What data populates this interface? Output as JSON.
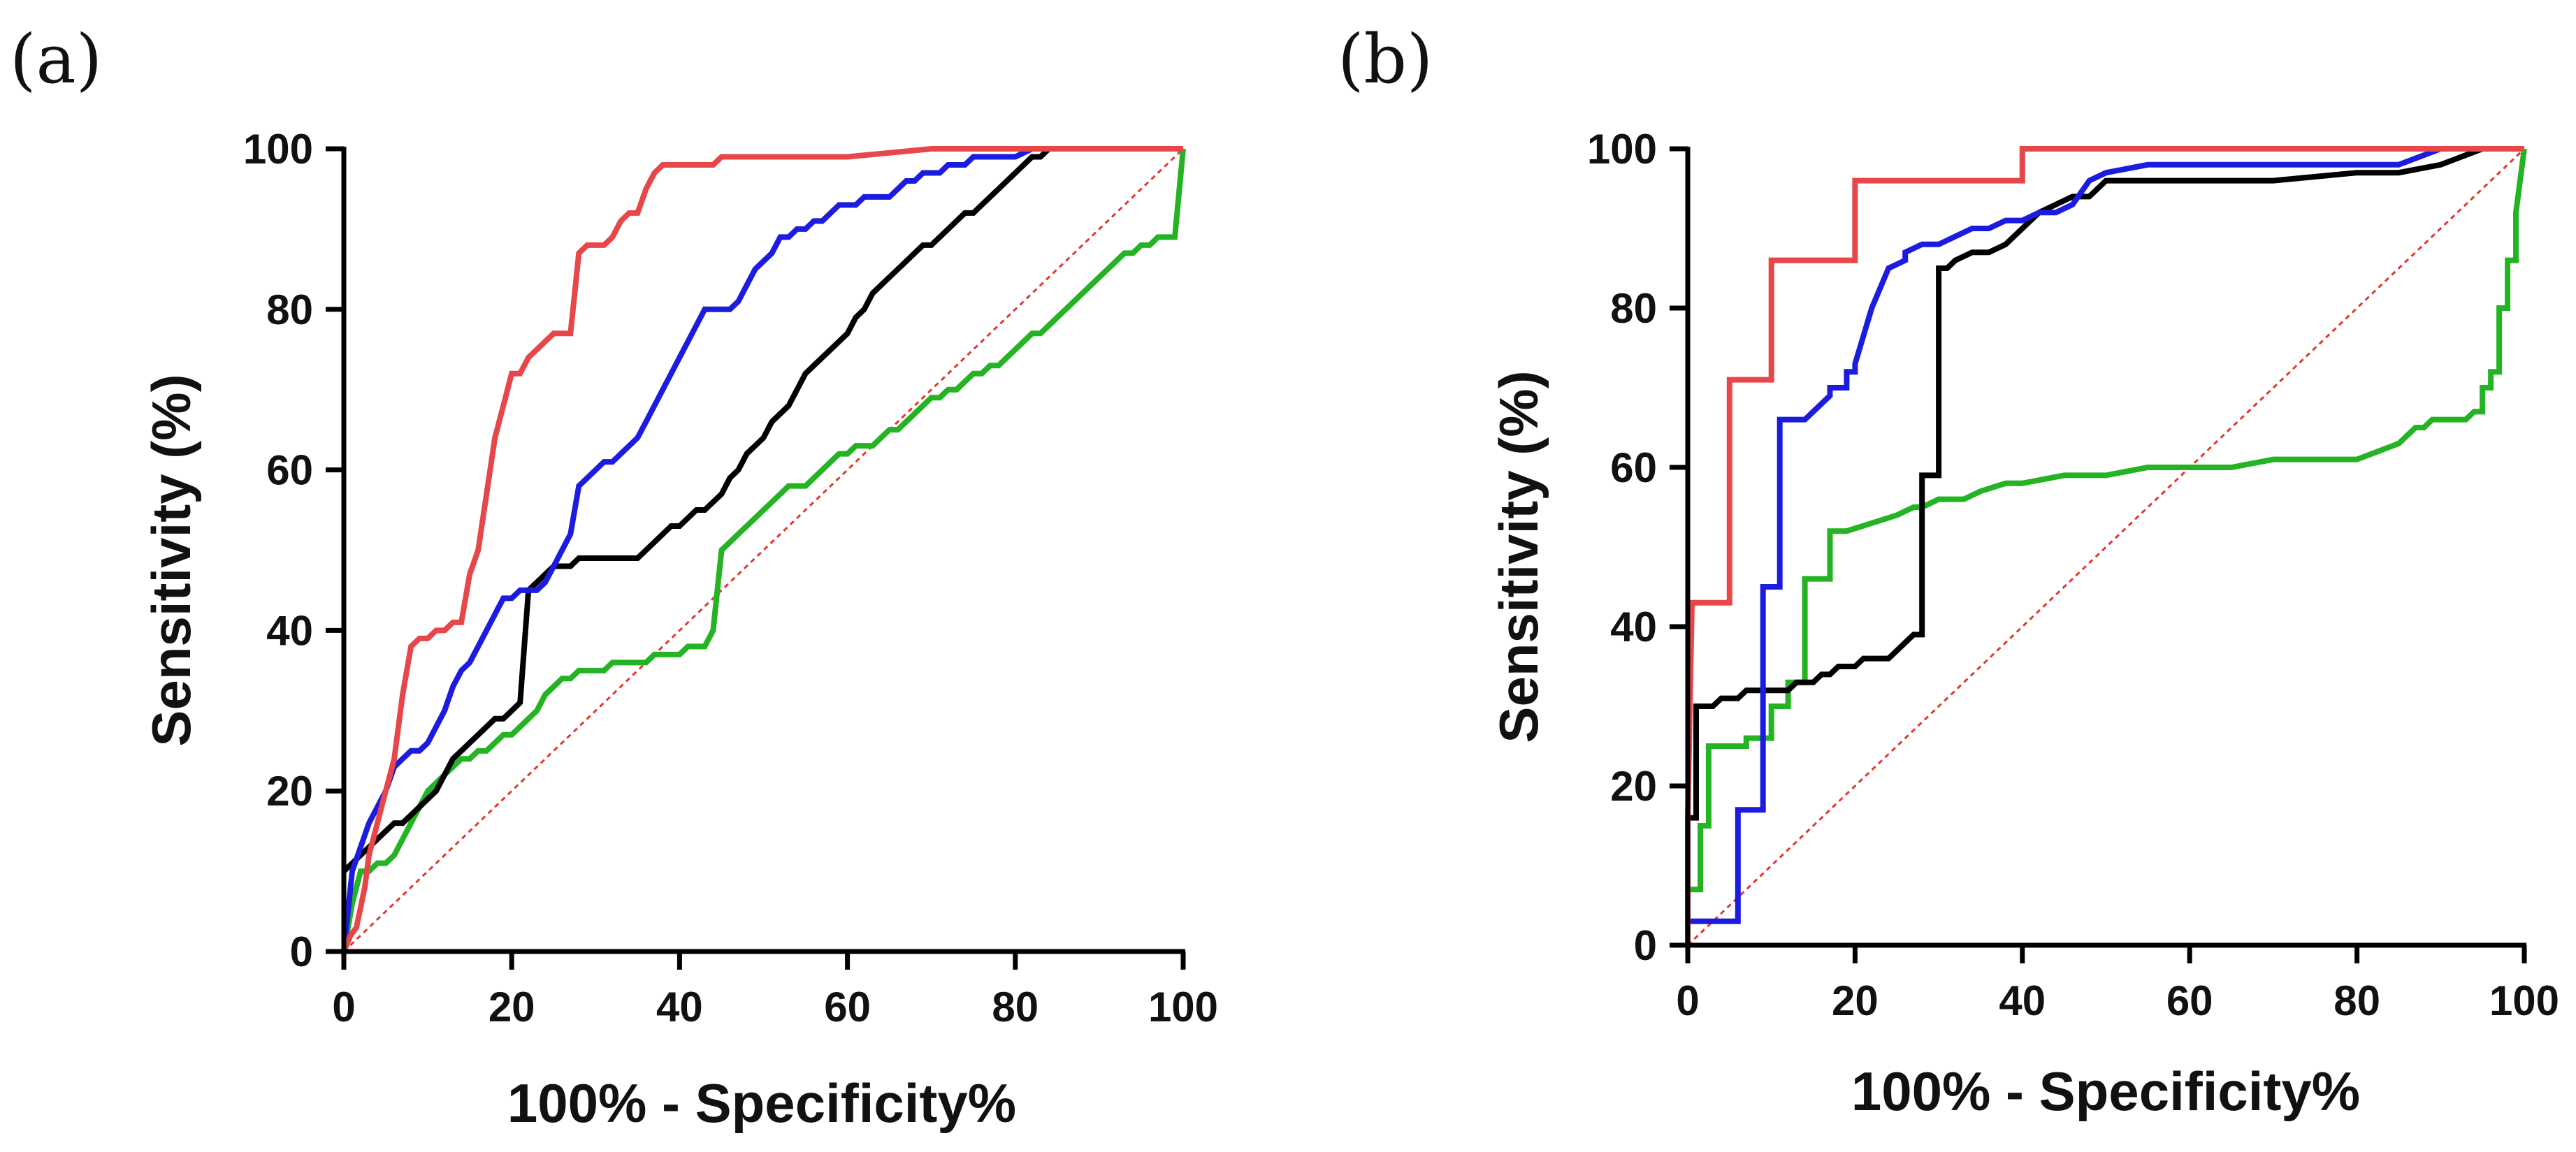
{
  "chart_data": [
    {
      "type": "line",
      "panel_label": "(a)",
      "xlabel": "100% - Specificity%",
      "ylabel": "Sensitivity (%)",
      "xlim": [
        0,
        100
      ],
      "ylim": [
        0,
        100
      ],
      "xticks": [
        "0",
        "20",
        "40",
        "60",
        "80",
        "100"
      ],
      "yticks": [
        "0",
        "20",
        "40",
        "60",
        "80",
        "100"
      ],
      "reference_line": {
        "name": "reference",
        "color": "#e0382d",
        "x": [
          0,
          100
        ],
        "y": [
          0,
          100
        ]
      },
      "series": [
        {
          "name": "red",
          "color": "#e8474a",
          "x": [
            0,
            0.8,
            1.5,
            2.5,
            3,
            4,
            5,
            6,
            7,
            8,
            9,
            10,
            11,
            12,
            13,
            14,
            15,
            16,
            17,
            18,
            19,
            20,
            21,
            22,
            23,
            24,
            25,
            26,
            27,
            28,
            29,
            30,
            31,
            32,
            33,
            34,
            35,
            36,
            37,
            38,
            39,
            40,
            41,
            42,
            43,
            44,
            45,
            50,
            55,
            60,
            70,
            80,
            90,
            100
          ],
          "y": [
            0,
            2,
            3,
            8,
            12,
            16,
            20,
            24,
            32,
            38,
            39,
            39,
            40,
            40,
            41,
            41,
            47,
            50,
            57,
            64,
            68,
            72,
            72,
            74,
            75,
            76,
            77,
            77,
            77,
            87,
            88,
            88,
            88,
            89,
            91,
            92,
            92,
            95,
            97,
            98,
            98,
            98,
            98,
            98,
            98,
            98,
            99,
            99,
            99,
            99,
            100,
            100,
            100,
            100
          ]
        },
        {
          "name": "blue",
          "color": "#1c1ce0",
          "x": [
            0,
            1,
            2,
            3,
            4,
            5,
            6,
            7,
            8,
            9,
            10,
            11,
            12,
            13,
            14,
            15,
            16,
            17,
            18,
            19,
            20,
            21,
            22,
            23,
            24,
            25,
            26,
            27,
            28,
            29,
            30,
            31,
            32,
            33,
            34,
            35,
            36,
            37,
            38,
            39,
            40,
            41,
            42,
            43,
            44,
            45,
            46,
            47,
            48,
            49,
            50,
            51,
            52,
            53,
            54,
            55,
            56,
            57,
            58,
            59,
            60,
            61,
            62,
            63,
            64,
            65,
            66,
            67,
            68,
            69,
            70,
            71,
            72,
            73,
            74,
            75,
            76,
            77,
            78,
            80,
            82,
            84,
            86,
            88,
            90,
            95,
            100
          ],
          "y": [
            0,
            10,
            13,
            16,
            18,
            20,
            23,
            24,
            25,
            25,
            26,
            28,
            30,
            33,
            35,
            36,
            38,
            40,
            42,
            44,
            44,
            45,
            45,
            45,
            46,
            48,
            50,
            52,
            58,
            59,
            60,
            61,
            61,
            62,
            63,
            64,
            66,
            68,
            70,
            72,
            74,
            76,
            78,
            80,
            80,
            80,
            80,
            81,
            83,
            85,
            86,
            87,
            89,
            89,
            90,
            90,
            91,
            91,
            92,
            93,
            93,
            93,
            94,
            94,
            94,
            94,
            95,
            96,
            96,
            97,
            97,
            97,
            98,
            98,
            98,
            99,
            99,
            99,
            99,
            99,
            100,
            100,
            100,
            100,
            100,
            100,
            100
          ]
        },
        {
          "name": "black",
          "color": "#000000",
          "x": [
            0,
            1,
            2,
            3,
            4,
            5,
            6,
            7,
            8,
            9,
            10,
            11,
            12,
            13,
            14,
            15,
            16,
            17,
            18,
            19,
            20,
            21,
            22,
            23,
            24,
            25,
            26,
            27,
            28,
            29,
            30,
            31,
            32,
            33,
            34,
            35,
            36,
            37,
            38,
            39,
            40,
            41,
            42,
            43,
            44,
            45,
            46,
            47,
            48,
            49,
            50,
            51,
            52,
            53,
            54,
            55,
            56,
            57,
            58,
            59,
            60,
            61,
            62,
            63,
            64,
            65,
            66,
            67,
            68,
            69,
            70,
            71,
            72,
            73,
            74,
            75,
            76,
            77,
            78,
            79,
            80,
            81,
            82,
            83,
            84,
            86,
            88,
            90,
            95,
            100
          ],
          "y": [
            10,
            11,
            12,
            13,
            14,
            15,
            16,
            16,
            17,
            18,
            19,
            20,
            22,
            24,
            25,
            26,
            27,
            28,
            29,
            29,
            30,
            31,
            45,
            46,
            47,
            48,
            48,
            48,
            49,
            49,
            49,
            49,
            49,
            49,
            49,
            49,
            50,
            51,
            52,
            53,
            53,
            54,
            55,
            55,
            56,
            57,
            59,
            60,
            62,
            63,
            64,
            66,
            67,
            68,
            70,
            72,
            73,
            74,
            75,
            76,
            77,
            79,
            80,
            82,
            83,
            84,
            85,
            86,
            87,
            88,
            88,
            89,
            90,
            91,
            92,
            92,
            93,
            94,
            95,
            96,
            97,
            98,
            99,
            99,
            100,
            100,
            100,
            100,
            100,
            100
          ]
        },
        {
          "name": "green",
          "color": "#23b323",
          "x": [
            0,
            1,
            2,
            3,
            4,
            5,
            6,
            7,
            8,
            9,
            10,
            11,
            12,
            13,
            14,
            15,
            16,
            17,
            18,
            19,
            20,
            21,
            22,
            23,
            24,
            25,
            26,
            27,
            28,
            29,
            30,
            31,
            32,
            33,
            34,
            35,
            36,
            37,
            38,
            39,
            40,
            41,
            42,
            43,
            44,
            45,
            46,
            47,
            48,
            49,
            50,
            51,
            52,
            53,
            54,
            55,
            56,
            57,
            58,
            59,
            60,
            61,
            62,
            63,
            64,
            65,
            66,
            67,
            68,
            69,
            70,
            71,
            72,
            73,
            74,
            75,
            76,
            77,
            78,
            79,
            80,
            81,
            82,
            83,
            84,
            85,
            86,
            87,
            88,
            89,
            90,
            91,
            92,
            93,
            94,
            95,
            96,
            97,
            98,
            99,
            100
          ],
          "y": [
            0,
            6,
            10,
            10,
            11,
            11,
            12,
            14,
            16,
            18,
            20,
            21,
            22,
            23,
            24,
            24,
            25,
            25,
            26,
            27,
            27,
            28,
            29,
            30,
            32,
            33,
            34,
            34,
            35,
            35,
            35,
            35,
            36,
            36,
            36,
            36,
            36,
            37,
            37,
            37,
            37,
            38,
            38,
            38,
            40,
            50,
            51,
            52,
            53,
            54,
            55,
            56,
            57,
            58,
            58,
            58,
            59,
            60,
            61,
            62,
            62,
            63,
            63,
            63,
            64,
            65,
            65,
            66,
            67,
            68,
            69,
            69,
            70,
            70,
            71,
            72,
            72,
            73,
            73,
            74,
            75,
            76,
            77,
            77,
            78,
            79,
            80,
            81,
            82,
            83,
            84,
            85,
            86,
            87,
            87,
            88,
            88,
            89,
            89,
            89,
            100
          ]
        }
      ]
    },
    {
      "type": "line",
      "panel_label": "(b)",
      "xlabel": "100% - Specificity%",
      "ylabel": "Sensitivity (%)",
      "xlim": [
        0,
        100
      ],
      "ylim": [
        0,
        100
      ],
      "xticks": [
        "0",
        "20",
        "40",
        "60",
        "80",
        "100"
      ],
      "yticks": [
        "0",
        "20",
        "40",
        "60",
        "80",
        "100"
      ],
      "reference_line": {
        "name": "reference",
        "color": "#e0382d",
        "x": [
          0,
          100
        ],
        "y": [
          0,
          100
        ]
      },
      "series": [
        {
          "name": "red",
          "color": "#e8474a",
          "x": [
            0,
            0,
            0.5,
            5,
            5,
            10,
            10,
            20,
            20,
            40,
            40,
            60,
            80,
            100
          ],
          "y": [
            0,
            16,
            43,
            43,
            71,
            71,
            86,
            86,
            96,
            96,
            100,
            100,
            100,
            100
          ]
        },
        {
          "name": "blue",
          "color": "#1c1ce0",
          "x": [
            0,
            6,
            6,
            9,
            9,
            11,
            11,
            14,
            15,
            16,
            17,
            17,
            19,
            19,
            20,
            20,
            22,
            22,
            24,
            24,
            26,
            26,
            28,
            30,
            32,
            34,
            36,
            38,
            40,
            42,
            44,
            46,
            48,
            50,
            55,
            60,
            70,
            80,
            85,
            90,
            95,
            100
          ],
          "y": [
            3,
            3,
            17,
            17,
            45,
            45,
            66,
            66,
            67,
            68,
            69,
            70,
            70,
            72,
            72,
            73,
            80,
            80,
            85,
            85,
            86,
            87,
            88,
            88,
            89,
            90,
            90,
            91,
            91,
            92,
            92,
            93,
            96,
            97,
            98,
            98,
            98,
            98,
            98,
            100,
            100,
            100
          ],
          "spike": true
        },
        {
          "name": "black",
          "color": "#000000",
          "x": [
            0,
            1,
            1,
            2,
            3,
            4,
            5,
            6,
            7,
            8,
            9,
            10,
            11,
            12,
            13,
            14,
            15,
            16,
            17,
            18,
            19,
            20,
            21,
            22,
            23,
            24,
            25,
            26,
            27,
            28,
            28,
            29,
            30,
            30,
            31,
            32,
            34,
            36,
            38,
            40,
            42,
            44,
            46,
            48,
            50,
            55,
            60,
            70,
            80,
            85,
            90,
            95,
            100
          ],
          "y": [
            16,
            16,
            30,
            30,
            30,
            31,
            31,
            31,
            32,
            32,
            32,
            32,
            32,
            32,
            33,
            33,
            33,
            34,
            34,
            35,
            35,
            35,
            36,
            36,
            36,
            36,
            37,
            38,
            39,
            39,
            59,
            59,
            59,
            85,
            85,
            86,
            87,
            87,
            88,
            90,
            92,
            93,
            94,
            94,
            96,
            96,
            96,
            96,
            97,
            97,
            98,
            100,
            100
          ]
        },
        {
          "name": "green",
          "color": "#23b323",
          "x": [
            0,
            1.5,
            1.5,
            2.5,
            2.5,
            7,
            7,
            10,
            10,
            12,
            12,
            14,
            14,
            17,
            17,
            19,
            19,
            22,
            22,
            25,
            25,
            27,
            28,
            30,
            33,
            35,
            38,
            40,
            45,
            50,
            55,
            60,
            65,
            70,
            80,
            85,
            86,
            87,
            88,
            89,
            90,
            91,
            92,
            93,
            94,
            95,
            95,
            96,
            96,
            97,
            97,
            98,
            98,
            99,
            99,
            100
          ],
          "y": [
            7,
            7,
            15,
            15,
            25,
            25,
            26,
            26,
            30,
            30,
            33,
            33,
            46,
            46,
            52,
            52,
            52,
            53,
            53,
            54,
            54,
            55,
            55,
            56,
            56,
            57,
            58,
            58,
            59,
            59,
            60,
            60,
            60,
            61,
            61,
            63,
            64,
            65,
            65,
            66,
            66,
            66,
            66,
            66,
            67,
            67,
            70,
            70,
            72,
            72,
            80,
            80,
            86,
            86,
            92,
            100
          ]
        }
      ]
    }
  ]
}
